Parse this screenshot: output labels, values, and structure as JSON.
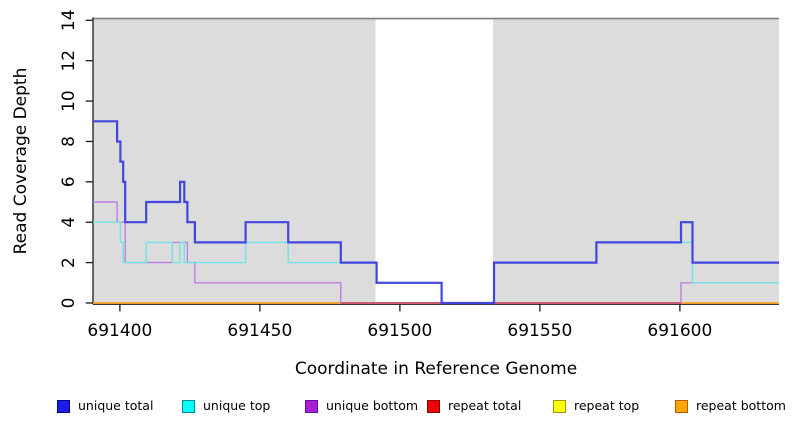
{
  "chart_data": {
    "type": "line",
    "subtype": "step-coverage-plot",
    "title": "",
    "xlabel": "Coordinate in Reference Genome",
    "ylabel": "Read Coverage Depth",
    "xlim": [
      691390.4,
      691635.4
    ],
    "ylim": [
      0,
      14
    ],
    "x_ticks": [
      691400,
      691450,
      691500,
      691550,
      691600
    ],
    "y_ticks": [
      0,
      2,
      4,
      6,
      8,
      10,
      12,
      14
    ],
    "grid": false,
    "legend_position": "bottom",
    "background": {
      "plot_bg": "#ffffff",
      "shaded_color": "#dcdcdc",
      "shaded_top_border_color": "#7e7e7e",
      "shaded_regions": [
        [
          691390.4,
          691491.3
        ],
        [
          691533.3,
          691635.4
        ]
      ]
    },
    "axis_color": "#1c1c1c",
    "zero_line_overlap": {
      "from": 691478.9,
      "to": 691600.4,
      "color": "#cb4b72"
    },
    "series": [
      {
        "name": "unique total",
        "color": "#4245df",
        "legend_fill": "#1c1ce6",
        "legend_border": "#000090",
        "linewidth": 2.2,
        "points": [
          [
            691390.4,
            9
          ],
          [
            691399.0,
            8
          ],
          [
            691400.2,
            7
          ],
          [
            691401.2,
            6
          ],
          [
            691401.9,
            4
          ],
          [
            691409.4,
            5
          ],
          [
            691421.5,
            6
          ],
          [
            691423.0,
            5
          ],
          [
            691424.1,
            4
          ],
          [
            691426.8,
            3
          ],
          [
            691444.9,
            4
          ],
          [
            691460.1,
            3
          ],
          [
            691478.9,
            2
          ],
          [
            691491.7,
            1
          ],
          [
            691514.9,
            0
          ],
          [
            691533.6,
            2
          ],
          [
            691570.2,
            3
          ],
          [
            691600.4,
            4
          ],
          [
            691604.5,
            2
          ]
        ]
      },
      {
        "name": "unique top",
        "color": "#70e4e6",
        "legend_fill": "#00ffff",
        "legend_border": "#008b8b",
        "linewidth": 1.4,
        "points": [
          [
            691390.4,
            4
          ],
          [
            691400.2,
            3
          ],
          [
            691401.2,
            2
          ],
          [
            691409.4,
            3
          ],
          [
            691418.7,
            2
          ],
          [
            691421.5,
            3
          ],
          [
            691423.0,
            2
          ],
          [
            691444.9,
            3
          ],
          [
            691460.1,
            2
          ],
          [
            691491.7,
            1
          ],
          [
            691514.9,
            0
          ],
          [
            691533.6,
            2
          ],
          [
            691570.2,
            3
          ],
          [
            691604.5,
            1
          ]
        ]
      },
      {
        "name": "unique bottom",
        "color": "#c07ee2",
        "legend_fill": "#a820d4",
        "legend_border": "#6a0dad",
        "linewidth": 1.4,
        "points": [
          [
            691390.4,
            5
          ],
          [
            691399.0,
            4
          ],
          [
            691401.9,
            2
          ],
          [
            691418.7,
            3
          ],
          [
            691424.1,
            2
          ],
          [
            691426.8,
            1
          ],
          [
            691478.9,
            0
          ],
          [
            691600.4,
            1
          ]
        ]
      },
      {
        "name": "repeat total",
        "color": "#d42a2a",
        "legend_fill": "#f00000",
        "legend_border": "#8b0000",
        "linewidth": 1.4,
        "points": [
          [
            691390.4,
            0
          ]
        ]
      },
      {
        "name": "repeat top",
        "color": "#f2f20c",
        "legend_fill": "#ffff00",
        "legend_border": "#999900",
        "linewidth": 1.4,
        "points": [
          [
            691390.4,
            0
          ]
        ]
      },
      {
        "name": "repeat bottom",
        "color": "#ffa338",
        "legend_fill": "#ffa500",
        "legend_border": "#b06000",
        "linewidth": 1.6,
        "points": [
          [
            691390.4,
            0
          ]
        ]
      }
    ]
  }
}
